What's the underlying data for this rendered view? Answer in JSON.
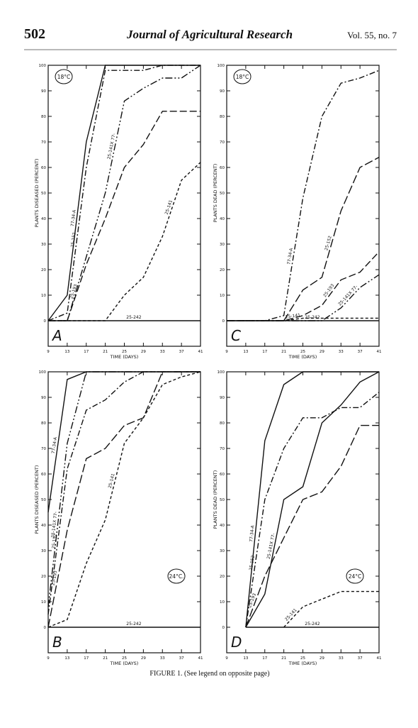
{
  "header": {
    "page": "502",
    "journal": "Journal of Agricultural Research",
    "volume": "Vol. 55, no. 7"
  },
  "caption": "FIGURE 1. (See legend on opposite page)",
  "chart_data": [
    {
      "type": "line",
      "panel": "A",
      "annotation": "18°C",
      "annotation_corner": "upper left",
      "ylabel": "PLANTS DISEASED (PERCENT)",
      "xlabel": "TIME (DAYS)",
      "x": [
        9,
        13,
        17,
        21,
        25,
        29,
        33,
        37,
        41
      ],
      "xlim": [
        9,
        41
      ],
      "xticks": [
        9,
        13,
        17,
        21,
        25,
        29,
        33,
        37,
        41
      ],
      "ylim": [
        -10,
        100
      ],
      "yticks": [
        0,
        10,
        20,
        30,
        40,
        50,
        60,
        70,
        80,
        90,
        100
      ],
      "series": [
        {
          "name": "77-34-A",
          "color": "#111",
          "dash": "",
          "values": [
            0,
            10,
            70,
            100,
            100,
            100,
            100,
            100,
            100
          ]
        },
        {
          "name": "25-152",
          "color": "#111",
          "dash": "8 3 2 3",
          "values": [
            0,
            3,
            60,
            98,
            98,
            98,
            100,
            100,
            100
          ]
        },
        {
          "name": "25-141X 77-",
          "color": "#111",
          "dash": "10 3 2 3 2 3",
          "values": [
            0,
            0,
            25,
            50,
            86,
            91,
            95,
            95,
            100
          ]
        },
        {
          "name": "25-193",
          "color": "#111",
          "dash": "10 4",
          "values": [
            0,
            0,
            22,
            40,
            60,
            69,
            82,
            82,
            82
          ]
        },
        {
          "name": "25-141",
          "color": "#111",
          "dash": "4 3",
          "values": [
            0,
            0,
            0,
            0,
            10,
            17,
            33,
            55,
            62
          ]
        },
        {
          "name": "25-242",
          "color": "#111",
          "dash": "",
          "values": [
            0,
            0,
            0,
            0,
            0,
            0,
            0,
            0,
            0
          ]
        }
      ]
    },
    {
      "type": "line",
      "panel": "C",
      "annotation": "18°C",
      "annotation_corner": "upper left",
      "ylabel": "PLANTS DEAD (PERCENT)",
      "xlabel": "TIME (DAYS)",
      "x": [
        9,
        13,
        17,
        21,
        25,
        29,
        33,
        37,
        41
      ],
      "xlim": [
        9,
        41
      ],
      "xticks": [
        9,
        13,
        17,
        21,
        25,
        29,
        33,
        37,
        41
      ],
      "ylim": [
        -10,
        100
      ],
      "yticks": [
        0,
        10,
        20,
        30,
        40,
        50,
        60,
        70,
        80,
        90,
        100
      ],
      "series": [
        {
          "name": "77-34-A",
          "color": "#111",
          "dash": "8 3 2 3",
          "values": [
            0,
            0,
            0,
            2,
            48,
            80,
            93,
            95,
            98
          ]
        },
        {
          "name": "25-152",
          "color": "#111",
          "dash": "12 4",
          "values": [
            0,
            0,
            0,
            0,
            12,
            17,
            43,
            60,
            64
          ]
        },
        {
          "name": "25-193",
          "color": "#111",
          "dash": "10 4",
          "values": [
            0,
            0,
            0,
            0,
            2,
            6,
            16,
            19,
            27
          ]
        },
        {
          "name": "25-141X 77-",
          "color": "#111",
          "dash": "10 3 2 3 2 3",
          "values": [
            0,
            0,
            0,
            0,
            0,
            0,
            5,
            13,
            18
          ]
        },
        {
          "name": "25-141",
          "color": "#111",
          "dash": "4 3",
          "values": [
            0,
            0,
            0,
            0,
            1,
            1,
            1,
            1,
            1
          ]
        },
        {
          "name": "25-242",
          "color": "#111",
          "dash": "",
          "values": [
            0,
            0,
            0,
            0,
            0,
            0,
            0,
            0,
            0
          ]
        }
      ]
    },
    {
      "type": "line",
      "panel": "B",
      "annotation": "24°C.",
      "annotation_corner": "lower right",
      "ylabel": "PLANTS DISEASED (PERCENT)",
      "xlabel": "TIME (DAYS)",
      "x": [
        9,
        13,
        17,
        21,
        25,
        29,
        33,
        37,
        41
      ],
      "xlim": [
        9,
        41
      ],
      "xticks": [
        9,
        13,
        17,
        21,
        25,
        29,
        33,
        37,
        41
      ],
      "ylim": [
        -10,
        100
      ],
      "yticks": [
        0,
        10,
        20,
        30,
        40,
        50,
        60,
        70,
        80,
        90,
        100
      ],
      "series": [
        {
          "name": "77-34-A",
          "color": "#111",
          "dash": "",
          "values": [
            45,
            97,
            100,
            100,
            100,
            100,
            100,
            100,
            100
          ]
        },
        {
          "name": "25-141X 77-",
          "color": "#111",
          "dash": "10 3 2 3 2 3",
          "values": [
            8,
            72,
            100,
            100,
            100,
            100,
            100,
            100,
            100
          ]
        },
        {
          "name": "25-152",
          "color": "#111",
          "dash": "8 3 2 3",
          "values": [
            5,
            62,
            85,
            89,
            96,
            100,
            100,
            100,
            100
          ]
        },
        {
          "name": "25-193",
          "color": "#111",
          "dash": "12 4",
          "values": [
            0,
            38,
            66,
            70,
            79,
            82,
            100,
            100,
            100
          ]
        },
        {
          "name": "25-141",
          "color": "#111",
          "dash": "4 3",
          "values": [
            0,
            3,
            25,
            42,
            72,
            82,
            95,
            98,
            100
          ]
        },
        {
          "name": "25-242",
          "color": "#111",
          "dash": "",
          "values": [
            0,
            0,
            0,
            0,
            0,
            0,
            0,
            0,
            0
          ]
        }
      ]
    },
    {
      "type": "line",
      "panel": "D",
      "annotation": "24°C",
      "annotation_corner": "lower right",
      "ylabel": "PLANTS DEAD (PERCENT)",
      "xlabel": "TIME (DAYS)",
      "x": [
        9,
        13,
        17,
        21,
        25,
        29,
        33,
        37,
        41
      ],
      "xlim": [
        9,
        41
      ],
      "xticks": [
        9,
        13,
        17,
        21,
        25,
        29,
        33,
        37,
        41
      ],
      "ylim": [
        -10,
        100
      ],
      "yticks": [
        0,
        10,
        20,
        30,
        40,
        50,
        60,
        70,
        80,
        90,
        100
      ],
      "series": [
        {
          "name": "77-34-A",
          "color": "#111",
          "dash": "",
          "values": [
            null,
            0,
            73,
            95,
            100,
            100,
            100,
            100,
            100
          ]
        },
        {
          "name": "25-152",
          "color": "#111",
          "dash": "8 3 2 3",
          "values": [
            null,
            0,
            50,
            70,
            82,
            82,
            86,
            86,
            92
          ]
        },
        {
          "name": "25-141X 77-",
          "color": "#111",
          "dash": "",
          "values": [
            null,
            0,
            13,
            50,
            55,
            80,
            87,
            96,
            100
          ]
        },
        {
          "name": "25-193",
          "color": "#111",
          "dash": "12 4",
          "values": [
            null,
            0,
            20,
            35,
            50,
            53,
            63,
            79,
            79
          ]
        },
        {
          "name": "25-141",
          "color": "#111",
          "dash": "4 3",
          "values": [
            null,
            null,
            null,
            0,
            8,
            11,
            14,
            14,
            14
          ]
        },
        {
          "name": "25-242",
          "color": "#111",
          "dash": "",
          "values": [
            null,
            0,
            0,
            0,
            0,
            0,
            0,
            0,
            0
          ]
        }
      ]
    }
  ]
}
